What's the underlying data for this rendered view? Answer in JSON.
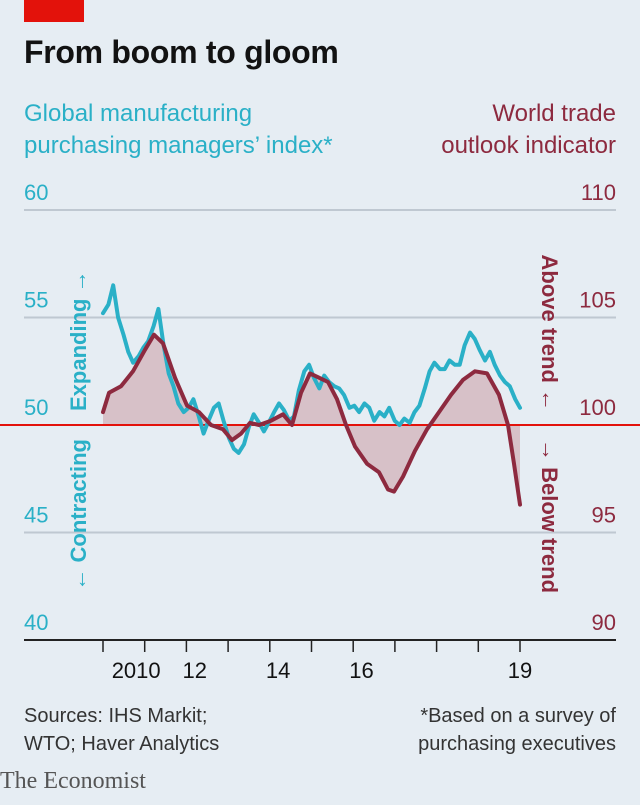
{
  "title": "From boom to gloom",
  "left_axis_title_lines": [
    "Global manufacturing",
    "purchasing managers’ index*"
  ],
  "right_axis_title_lines": [
    "World trade",
    "outlook indicator"
  ],
  "left_vertical_label_up": "Expanding",
  "left_vertical_label_down": "Contracting",
  "right_vertical_label_up": "Above trend",
  "right_vertical_label_down": "Below trend",
  "sources_lines": [
    "Sources: IHS Markit;",
    "WTO; Haver Analytics"
  ],
  "footnote_lines": [
    "*Based on a survey of",
    "purchasing executives"
  ],
  "brand": "The Economist",
  "colors": {
    "background": "#e6edf3",
    "pmi": "#2ab0c7",
    "trade": "#8d2a3f",
    "fill": "#d4b8c0",
    "zero_line": "#e3120b",
    "grid": "#bfc8d1",
    "brand_red": "#e3120b"
  },
  "chart_data": {
    "type": "line",
    "x_ticks": [
      "2010",
      "12",
      "14",
      "16",
      "19"
    ],
    "y_left_ticks": [
      "60",
      "55",
      "50",
      "45",
      "40"
    ],
    "y_right_ticks": [
      "110",
      "105",
      "100",
      "95",
      "90"
    ],
    "y_left_range": [
      40,
      60
    ],
    "y_right_range": [
      90,
      110
    ],
    "x_range": [
      2009.0,
      2019.0
    ],
    "grid": true,
    "series": [
      {
        "key": "pmi",
        "axis": "left",
        "points": [
          [
            2009.08,
            55.2
          ],
          [
            2009.17,
            55.6
          ],
          [
            2009.25,
            56.5
          ],
          [
            2009.33,
            55.0
          ],
          [
            2009.42,
            54.2
          ],
          [
            2009.5,
            53.4
          ],
          [
            2009.58,
            52.9
          ],
          [
            2009.67,
            53.2
          ],
          [
            2009.75,
            53.6
          ],
          [
            2009.83,
            53.9
          ],
          [
            2009.92,
            54.6
          ],
          [
            2010.0,
            55.4
          ],
          [
            2010.08,
            53.8
          ],
          [
            2010.17,
            52.4
          ],
          [
            2010.25,
            51.8
          ],
          [
            2010.33,
            51.0
          ],
          [
            2010.42,
            50.6
          ],
          [
            2010.5,
            50.8
          ],
          [
            2010.58,
            51.2
          ],
          [
            2010.67,
            50.4
          ],
          [
            2010.75,
            49.6
          ],
          [
            2010.83,
            50.2
          ],
          [
            2010.92,
            50.8
          ],
          [
            2011.0,
            51.0
          ],
          [
            2011.08,
            50.2
          ],
          [
            2011.17,
            49.4
          ],
          [
            2011.25,
            48.9
          ],
          [
            2011.33,
            48.7
          ],
          [
            2011.42,
            49.1
          ],
          [
            2011.5,
            49.9
          ],
          [
            2011.58,
            50.5
          ],
          [
            2011.67,
            50.1
          ],
          [
            2011.75,
            49.7
          ],
          [
            2011.83,
            50.1
          ],
          [
            2011.92,
            50.6
          ],
          [
            2012.0,
            51.0
          ],
          [
            2012.08,
            50.7
          ],
          [
            2012.17,
            50.2
          ],
          [
            2012.25,
            50.4
          ],
          [
            2012.33,
            51.6
          ],
          [
            2012.42,
            52.5
          ],
          [
            2012.5,
            52.8
          ],
          [
            2012.58,
            52.2
          ],
          [
            2012.67,
            51.7
          ],
          [
            2012.75,
            52.3
          ],
          [
            2012.83,
            52.0
          ],
          [
            2012.92,
            51.8
          ],
          [
            2013.0,
            51.7
          ],
          [
            2013.08,
            51.4
          ],
          [
            2013.17,
            50.8
          ],
          [
            2013.25,
            50.9
          ],
          [
            2013.33,
            50.6
          ],
          [
            2013.42,
            51.0
          ],
          [
            2013.5,
            50.8
          ],
          [
            2013.58,
            50.2
          ],
          [
            2013.67,
            50.6
          ],
          [
            2013.75,
            50.4
          ],
          [
            2013.83,
            50.8
          ],
          [
            2013.92,
            50.2
          ],
          [
            2014.0,
            50.0
          ],
          [
            2014.08,
            50.3
          ],
          [
            2014.17,
            50.1
          ],
          [
            2014.25,
            50.6
          ],
          [
            2014.33,
            50.9
          ],
          [
            2014.42,
            51.7
          ],
          [
            2014.5,
            52.5
          ],
          [
            2014.58,
            52.9
          ],
          [
            2014.67,
            52.6
          ],
          [
            2014.75,
            52.6
          ],
          [
            2014.83,
            53.0
          ],
          [
            2014.92,
            52.8
          ],
          [
            2015.0,
            52.8
          ],
          [
            2015.08,
            53.7
          ],
          [
            2015.17,
            54.3
          ],
          [
            2015.25,
            54.0
          ],
          [
            2015.33,
            53.5
          ],
          [
            2015.42,
            53.0
          ],
          [
            2015.5,
            53.4
          ],
          [
            2015.58,
            52.8
          ],
          [
            2015.67,
            52.3
          ],
          [
            2015.75,
            52.0
          ],
          [
            2015.83,
            51.8
          ],
          [
            2015.92,
            51.2
          ],
          [
            2016.0,
            50.8
          ]
        ]
      },
      {
        "key": "trade",
        "axis": "right",
        "fill_to": 100,
        "points": [
          [
            2009.0,
            100.6
          ],
          [
            2009.1,
            101.5
          ],
          [
            2009.3,
            101.8
          ],
          [
            2009.5,
            102.5
          ],
          [
            2009.7,
            103.5
          ],
          [
            2009.85,
            104.2
          ],
          [
            2010.0,
            103.8
          ],
          [
            2010.2,
            102.2
          ],
          [
            2010.4,
            100.9
          ],
          [
            2010.6,
            100.6
          ],
          [
            2010.8,
            100.0
          ],
          [
            2011.0,
            99.8
          ],
          [
            2011.15,
            99.3
          ],
          [
            2011.3,
            99.6
          ],
          [
            2011.45,
            100.1
          ],
          [
            2011.6,
            100.0
          ],
          [
            2011.8,
            100.2
          ],
          [
            2012.0,
            100.5
          ],
          [
            2012.15,
            100.0
          ],
          [
            2012.3,
            101.5
          ],
          [
            2012.45,
            102.4
          ],
          [
            2012.6,
            102.2
          ],
          [
            2012.75,
            102.0
          ],
          [
            2012.9,
            101.2
          ],
          [
            2013.05,
            100.0
          ],
          [
            2013.2,
            99.0
          ],
          [
            2013.4,
            98.2
          ],
          [
            2013.6,
            97.8
          ],
          [
            2013.75,
            97.0
          ],
          [
            2013.85,
            96.9
          ],
          [
            2014.0,
            97.6
          ],
          [
            2014.2,
            98.8
          ],
          [
            2014.4,
            99.8
          ],
          [
            2014.6,
            100.6
          ],
          [
            2014.8,
            101.4
          ],
          [
            2015.0,
            102.1
          ],
          [
            2015.2,
            102.5
          ],
          [
            2015.4,
            102.4
          ],
          [
            2015.6,
            101.4
          ],
          [
            2015.75,
            100.0
          ],
          [
            2015.85,
            98.2
          ],
          [
            2015.95,
            96.3
          ]
        ]
      }
    ]
  }
}
